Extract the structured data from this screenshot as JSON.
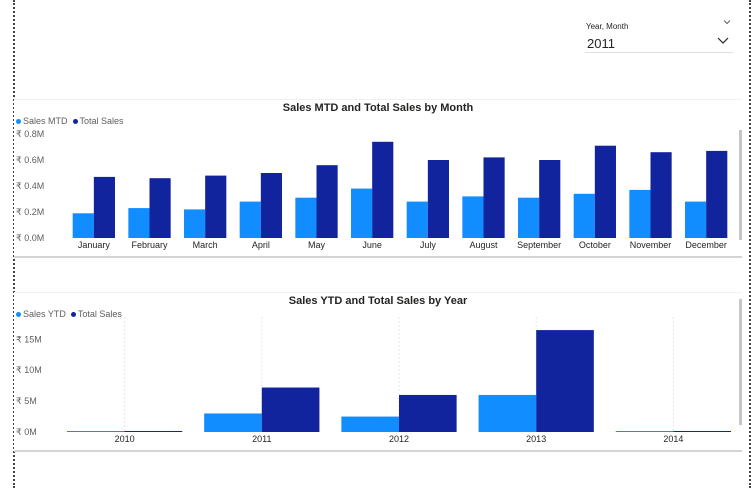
{
  "slicer": {
    "label": "Year, Month",
    "value": "2011"
  },
  "icons": [
    "chevron-down-icon"
  ],
  "colors": {
    "sales": "#118dff",
    "total": "#12239e",
    "axis_text": "#605e5c",
    "grid": "#e6e6e6"
  },
  "chart_data": [
    {
      "type": "bar",
      "title": "Sales MTD and Total Sales by Month",
      "categories": [
        "January",
        "February",
        "March",
        "April",
        "May",
        "June",
        "July",
        "August",
        "September",
        "October",
        "November",
        "December"
      ],
      "series": [
        {
          "name": "Sales MTD",
          "values": [
            0.19,
            0.23,
            0.22,
            0.28,
            0.31,
            0.38,
            0.28,
            0.32,
            0.31,
            0.34,
            0.37,
            0.28
          ]
        },
        {
          "name": "Total Sales",
          "values": [
            0.47,
            0.46,
            0.48,
            0.5,
            0.56,
            0.74,
            0.6,
            0.62,
            0.6,
            0.71,
            0.66,
            0.67
          ]
        }
      ],
      "y_ticks": [
        "₹ 0.0M",
        "₹ 0.2M",
        "₹ 0.4M",
        "₹ 0.6M",
        "₹ 0.8M"
      ],
      "ylim": [
        0,
        0.8
      ],
      "legend": "top-left",
      "grid": false
    },
    {
      "type": "bar",
      "title": "Sales YTD and Total Sales by Year",
      "categories": [
        "2010",
        "2011",
        "2012",
        "2013",
        "2014"
      ],
      "series": [
        {
          "name": "Sales YTD",
          "values": [
            0.1,
            3.0,
            2.5,
            6.0,
            0.1
          ]
        },
        {
          "name": "Total Sales",
          "values": [
            0.1,
            7.2,
            6.0,
            16.5,
            0.1
          ]
        }
      ],
      "y_ticks": [
        "₹ 0M",
        "₹ 5M",
        "₹ 10M",
        "₹ 15M"
      ],
      "ylim": [
        0,
        17
      ],
      "legend": "top-left",
      "grid": true
    }
  ]
}
